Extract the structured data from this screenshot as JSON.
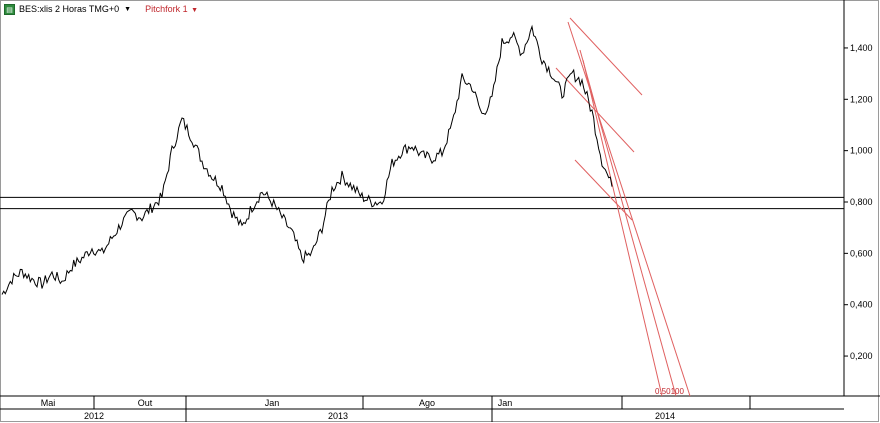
{
  "header": {
    "symbol_icon": "chart-symbol-icon",
    "symbol_text": "BES:xlis 2 Horas TMG+0",
    "study_label": "Pitchfork 1"
  },
  "colors": {
    "price": "#000000",
    "pitchfork": "#e06060",
    "horizontal_lines": "#000000",
    "axis": "#000000",
    "background": "#ffffff"
  },
  "chart_data": {
    "type": "line",
    "title": "",
    "xlabel": "",
    "ylabel": "",
    "y_axis_position": "right",
    "ylim": [
      0.06,
      1.54
    ],
    "y_ticks": [
      "0,200",
      "0,400",
      "0,600",
      "0,800",
      "1,000",
      "1,200",
      "1,400"
    ],
    "y_tick_values": [
      0.2,
      0.4,
      0.6,
      0.8,
      1.0,
      1.2,
      1.4
    ],
    "x_month_labels": [
      "Mai",
      "Out",
      "Jan",
      "Ago",
      "Jan"
    ],
    "x_year_labels": [
      "2012",
      "2013",
      "2014"
    ],
    "grid": false,
    "series": [
      {
        "values": [
          0.44,
          0.5,
          0.53,
          0.5,
          0.48,
          0.52,
          0.49,
          0.55,
          0.58,
          0.62,
          0.6,
          0.66,
          0.72,
          0.76,
          0.74,
          0.78,
          0.82,
          1.0,
          1.12,
          1.05,
          0.96,
          0.9,
          0.86,
          0.76,
          0.7,
          0.78,
          0.84,
          0.8,
          0.74,
          0.68,
          0.58,
          0.6,
          0.7,
          0.85,
          0.9,
          0.86,
          0.82,
          0.8,
          0.8,
          0.95,
          1.0,
          1.02,
          0.98,
          0.97,
          0.99,
          1.1,
          1.28,
          1.25,
          1.14,
          1.2,
          1.42,
          1.45,
          1.38,
          1.48,
          1.36,
          1.3,
          1.22,
          1.3,
          1.27,
          1.15,
          0.96,
          0.86
        ]
      }
    ],
    "horizontal_levels": [
      0.818,
      0.774
    ],
    "annotations": [
      {
        "label": "0.50100"
      }
    ]
  }
}
